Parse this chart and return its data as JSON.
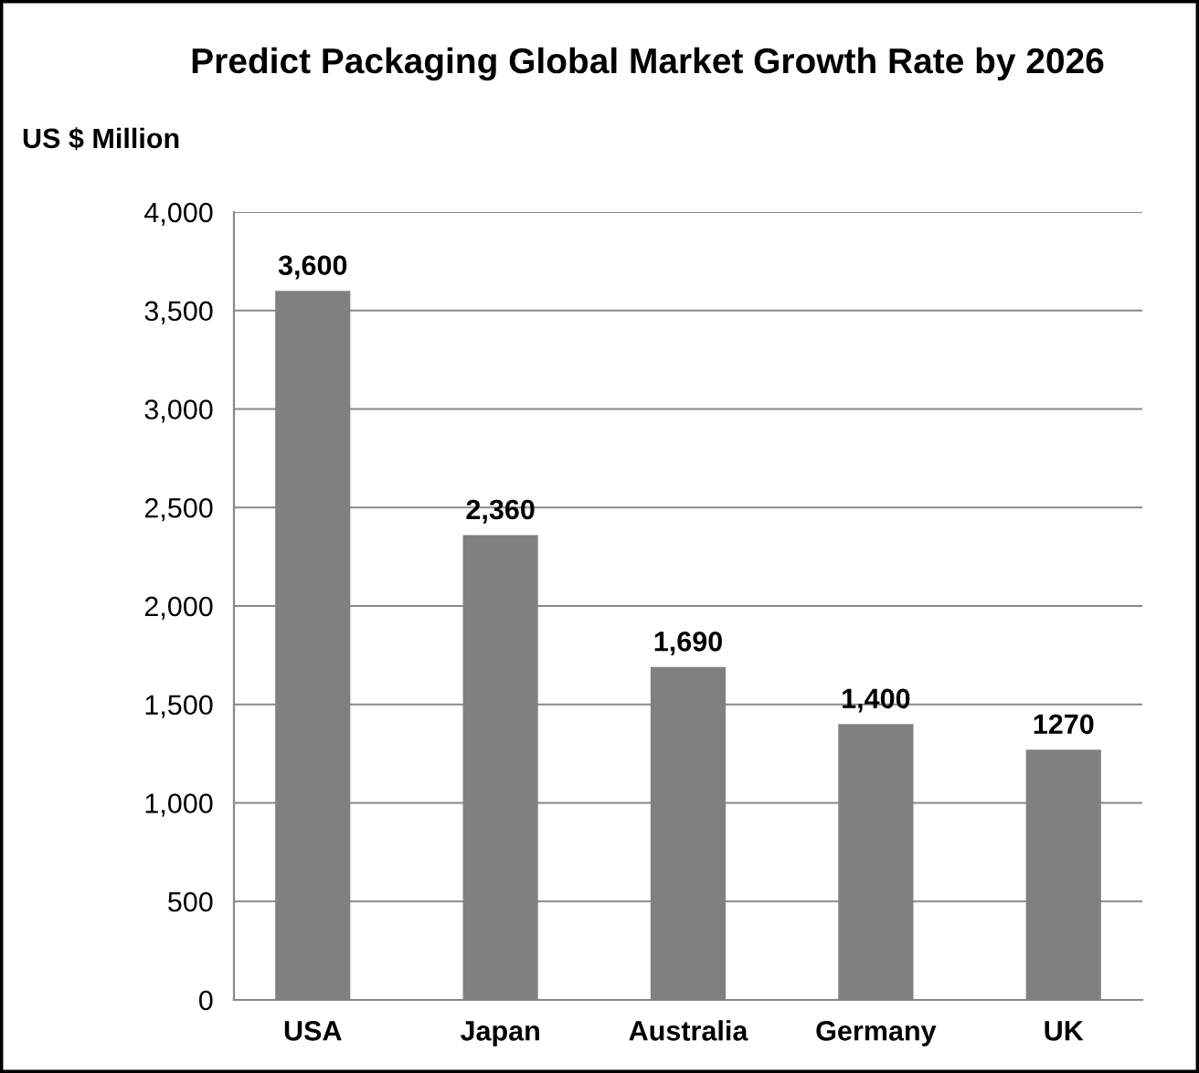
{
  "chart_data": {
    "type": "bar",
    "title": "Predict Packaging Global Market Growth Rate by 2026",
    "ylabel": "US $ Million",
    "categories": [
      "USA",
      "Japan",
      "Australia",
      "Germany",
      "UK"
    ],
    "values": [
      3600,
      2360,
      1690,
      1400,
      1270
    ],
    "value_labels": [
      "3,600",
      "2,360",
      "1,690",
      "1,400",
      "1270"
    ],
    "color": "#808080",
    "ylim": [
      0,
      4000
    ],
    "yticks": [
      {
        "value": 0,
        "label": "0"
      },
      {
        "value": 500,
        "label": "500"
      },
      {
        "value": 1000,
        "label": "1,000"
      },
      {
        "value": 1500,
        "label": "1,500"
      },
      {
        "value": 2000,
        "label": "2,000"
      },
      {
        "value": 2500,
        "label": "2,500"
      },
      {
        "value": 3000,
        "label": "3,000"
      },
      {
        "value": 3500,
        "label": "3,500"
      },
      {
        "value": 4000,
        "label": "4,000"
      }
    ],
    "grid": "y",
    "legend": false
  }
}
